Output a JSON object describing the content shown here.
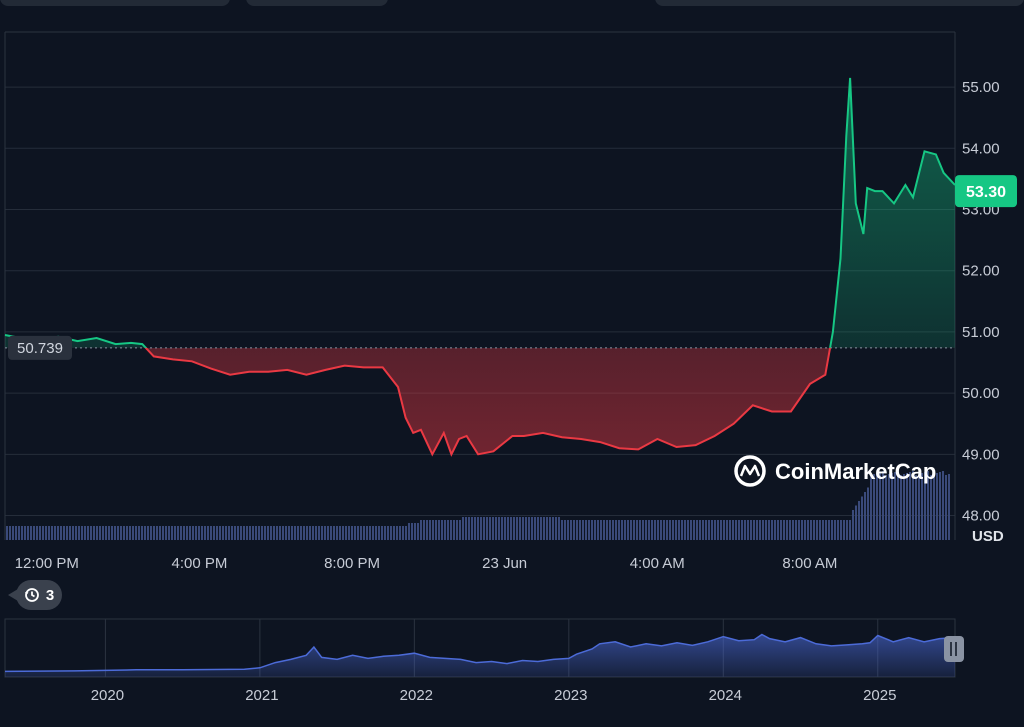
{
  "currency": "USD",
  "reference_price": "50.739",
  "current_price": "53.30",
  "watermark": "CoinMarketCap",
  "history_count": "3",
  "colors": {
    "up": "#16c784",
    "down": "#ea3943",
    "background": "#0d1421",
    "volume": "#3a4a7a",
    "nav_line": "#4c6bd8"
  },
  "chart_data": [
    {
      "type": "line",
      "ylim": [
        47.6,
        55.9
      ],
      "y_ticks": [
        "55.00",
        "54.00",
        "53.00",
        "52.00",
        "51.00",
        "50.00",
        "49.00",
        "48.00"
      ],
      "y_tick_values": [
        55,
        54,
        53,
        52,
        51,
        50,
        49,
        48
      ],
      "x_ticks": [
        "12:00 PM",
        "4:00 PM",
        "8:00 PM",
        "23 Jun",
        "4:00 AM",
        "8:00 AM"
      ],
      "x_tick_hours": [
        0,
        4,
        8,
        12,
        16,
        20
      ],
      "xlim_hours": [
        -0.1,
        24.8
      ],
      "reference": 50.739,
      "series": [
        {
          "x": [
            -0.1,
            0.3,
            0.8,
            1.3,
            1.8,
            2.3,
            2.8,
            3.2,
            3.5,
            3.8,
            4.3,
            4.8,
            5.3,
            5.8,
            6.3,
            6.8,
            7.3,
            7.8,
            8.3,
            8.8,
            9.3,
            9.8,
            10.2,
            10.4,
            10.6,
            10.8,
            11.1,
            11.4,
            11.6,
            11.8,
            12.0,
            12.3,
            12.7,
            13.0,
            13.2,
            13.5,
            14.0,
            14.5,
            15.0,
            15.5,
            16.0,
            16.5,
            17.0,
            17.5,
            18.0,
            18.5,
            19.0,
            19.5,
            20.0,
            20.5,
            21.0,
            21.4,
            21.6,
            21.8,
            21.95,
            22.05,
            22.2,
            22.4,
            22.5,
            22.7,
            22.9,
            23.2,
            23.5,
            23.7,
            24.0,
            24.3,
            24.5,
            24.8
          ],
          "y": [
            50.95,
            50.9,
            50.88,
            50.92,
            50.85,
            50.9,
            50.8,
            50.82,
            50.8,
            50.6,
            50.55,
            50.52,
            50.4,
            50.3,
            50.35,
            50.35,
            50.38,
            50.3,
            50.38,
            50.45,
            50.42,
            50.42,
            50.1,
            49.6,
            49.35,
            49.4,
            49.0,
            49.35,
            49.0,
            49.25,
            49.3,
            49.0,
            49.05,
            49.2,
            49.3,
            49.3,
            49.35,
            49.28,
            49.25,
            49.2,
            49.1,
            49.08,
            49.25,
            49.12,
            49.15,
            49.3,
            49.5,
            49.8,
            49.7,
            49.7,
            50.15,
            50.3,
            51.0,
            52.2,
            54.2,
            55.15,
            53.1,
            52.6,
            53.35,
            53.3,
            53.3,
            53.1,
            53.4,
            53.2,
            53.95,
            53.9,
            53.6,
            53.4
          ]
        }
      ]
    },
    {
      "type": "area",
      "x_ticks": [
        "2020",
        "2021",
        "2022",
        "2023",
        "2024",
        "2025"
      ],
      "x_tick_years": [
        2020,
        2021,
        2022,
        2023,
        2024,
        2025
      ],
      "xlim_years": [
        2019.35,
        2025.5
      ],
      "ylim": [
        0,
        100
      ],
      "series": [
        {
          "x": [
            2019.35,
            2019.8,
            2020.2,
            2020.5,
            2020.9,
            2021.0,
            2021.1,
            2021.2,
            2021.3,
            2021.35,
            2021.4,
            2021.5,
            2021.6,
            2021.7,
            2021.8,
            2021.9,
            2022.0,
            2022.1,
            2022.2,
            2022.3,
            2022.4,
            2022.5,
            2022.6,
            2022.7,
            2022.8,
            2022.9,
            2023.0,
            2023.05,
            2023.15,
            2023.2,
            2023.3,
            2023.4,
            2023.5,
            2023.6,
            2023.7,
            2023.8,
            2023.9,
            2024.0,
            2024.1,
            2024.2,
            2024.25,
            2024.3,
            2024.4,
            2024.5,
            2024.6,
            2024.7,
            2024.8,
            2024.9,
            2024.95,
            2025.0,
            2025.1,
            2025.2,
            2025.3,
            2025.4,
            2025.5
          ],
          "y": [
            5,
            6,
            8,
            8,
            9,
            12,
            22,
            28,
            36,
            52,
            32,
            28,
            36,
            30,
            34,
            36,
            40,
            32,
            30,
            28,
            22,
            24,
            20,
            26,
            24,
            28,
            30,
            38,
            48,
            58,
            62,
            52,
            58,
            54,
            60,
            55,
            62,
            72,
            64,
            66,
            76,
            68,
            62,
            70,
            58,
            54,
            56,
            58,
            60,
            74,
            62,
            70,
            62,
            68,
            70
          ]
        }
      ]
    }
  ]
}
